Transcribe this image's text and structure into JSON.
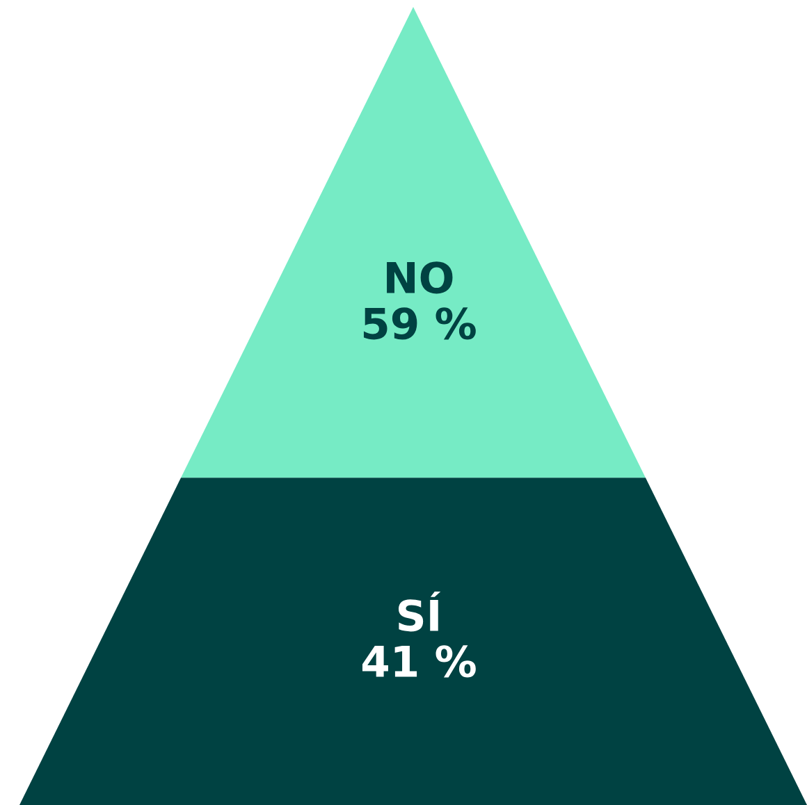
{
  "chart_data": {
    "type": "other",
    "categories": [
      "NO",
      "SÍ"
    ],
    "values": [
      59,
      41
    ],
    "value_labels": [
      "59 %",
      "41 %"
    ],
    "colors": [
      "#76ebc5",
      "#004242"
    ]
  }
}
